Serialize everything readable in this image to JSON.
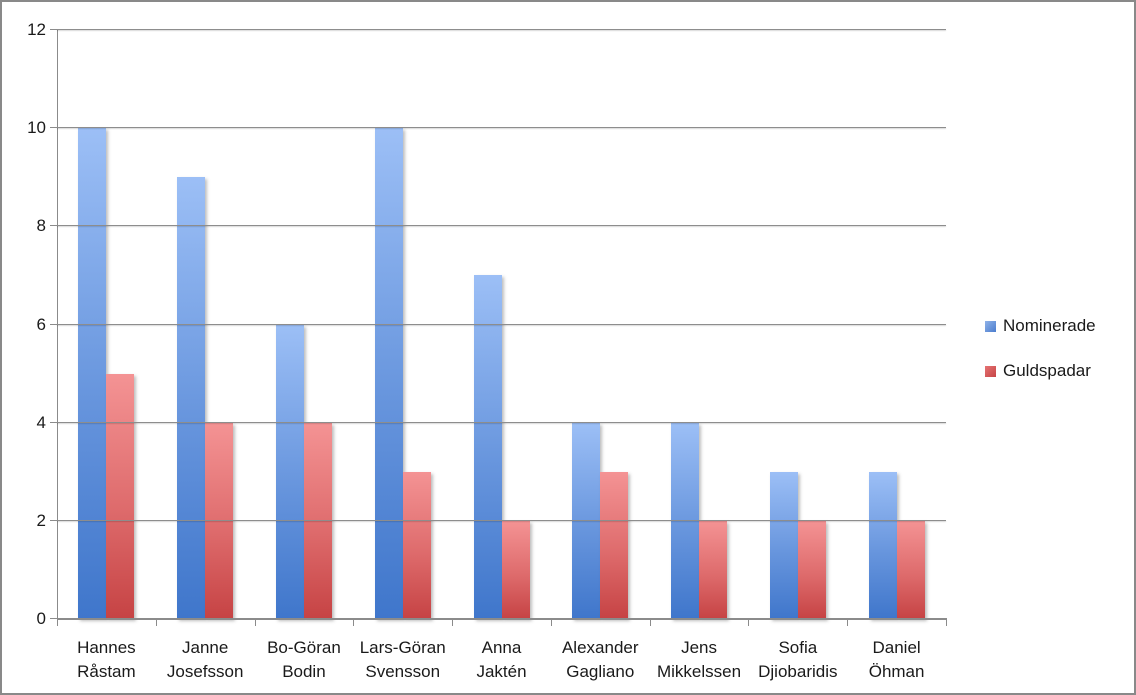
{
  "chart_data": {
    "type": "bar",
    "title": "",
    "xlabel": "",
    "ylabel": "",
    "categories": [
      "Hannes Råstam",
      "Janne Josefsson",
      "Bo-Göran Bodin",
      "Lars-Göran Svensson",
      "Anna Jaktén",
      "Alexander Gagliano",
      "Jens Mikkelssen",
      "Sofia Djiobaridis",
      "Daniel Öhman"
    ],
    "series": [
      {
        "name": "Nominerade",
        "values": [
          10,
          9,
          6,
          10,
          7,
          4,
          4,
          3,
          3
        ],
        "color_top": "#9CBFF6",
        "color_bottom": "#3F76CB"
      },
      {
        "name": "Guldspadar",
        "values": [
          5,
          4,
          4,
          3,
          2,
          3,
          2,
          2,
          2
        ],
        "color_top": "#F49394",
        "color_bottom": "#C64344"
      }
    ],
    "ylim": [
      0,
      12
    ],
    "yticks": [
      0,
      2,
      4,
      6,
      8,
      10,
      12
    ],
    "grid": true,
    "legend_position": "right"
  },
  "colors": {
    "axis": "#8b8b8b",
    "gridline": "#8d8d8d",
    "text": "#1a1a1a",
    "frame_border": "#898989",
    "background": "#ffffff"
  }
}
